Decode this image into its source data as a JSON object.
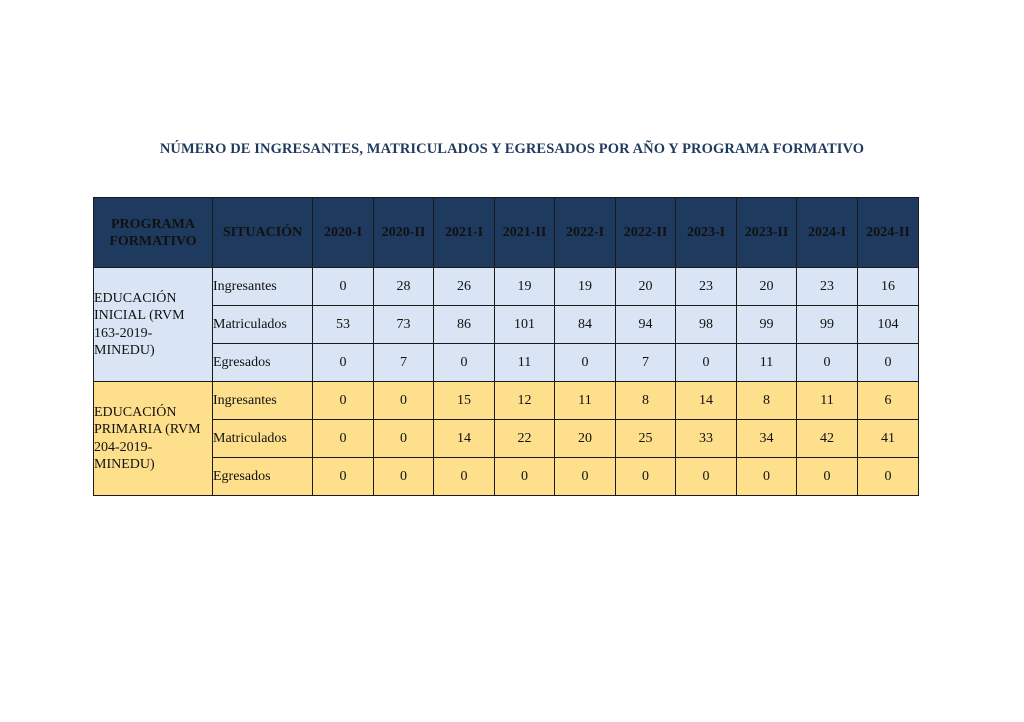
{
  "title": "NÚMERO DE INGRESANTES, MATRICULADOS Y EGRESADOS POR AÑO Y PROGRAMA FORMATIVO",
  "headers": {
    "program": "PROGRAMA FORMATIVO",
    "situation": "SITUACIÓN",
    "periods": [
      "2020-I",
      "2020-II",
      "2021-I",
      "2021-II",
      "2022-I",
      "2022-II",
      "2023-I",
      "2023-II",
      "2024-I",
      "2024-II"
    ]
  },
  "colors": {
    "header_bg": "#1f3a5f",
    "inicial_bg": "#d9e5f4",
    "primaria_bg": "#fedf8c"
  },
  "programs": [
    {
      "name": "EDUCACIÓN INICIAL (RVM 163-2019-MINEDU)",
      "rows": [
        {
          "situation": "Ingresantes",
          "values": [
            "0",
            "28",
            "26",
            "19",
            "19",
            "20",
            "23",
            "20",
            "23",
            "16"
          ]
        },
        {
          "situation": "Matriculados",
          "values": [
            "53",
            "73",
            "86",
            "101",
            "84",
            "94",
            "98",
            "99",
            "99",
            "104"
          ]
        },
        {
          "situation": "Egresados",
          "values": [
            "0",
            "7",
            "0",
            "11",
            "0",
            "7",
            "0",
            "11",
            "0",
            "0"
          ]
        }
      ]
    },
    {
      "name": "EDUCACIÓN PRIMARIA (RVM 204-2019-MINEDU)",
      "rows": [
        {
          "situation": "Ingresantes",
          "values": [
            "0",
            "0",
            "15",
            "12",
            "11",
            "8",
            "14",
            "8",
            "11",
            "6"
          ]
        },
        {
          "situation": "Matriculados",
          "values": [
            "0",
            "0",
            "14",
            "22",
            "20",
            "25",
            "33",
            "34",
            "42",
            "41"
          ]
        },
        {
          "situation": "Egresados",
          "values": [
            "0",
            "0",
            "0",
            "0",
            "0",
            "0",
            "0",
            "0",
            "0",
            "0"
          ]
        }
      ]
    }
  ]
}
